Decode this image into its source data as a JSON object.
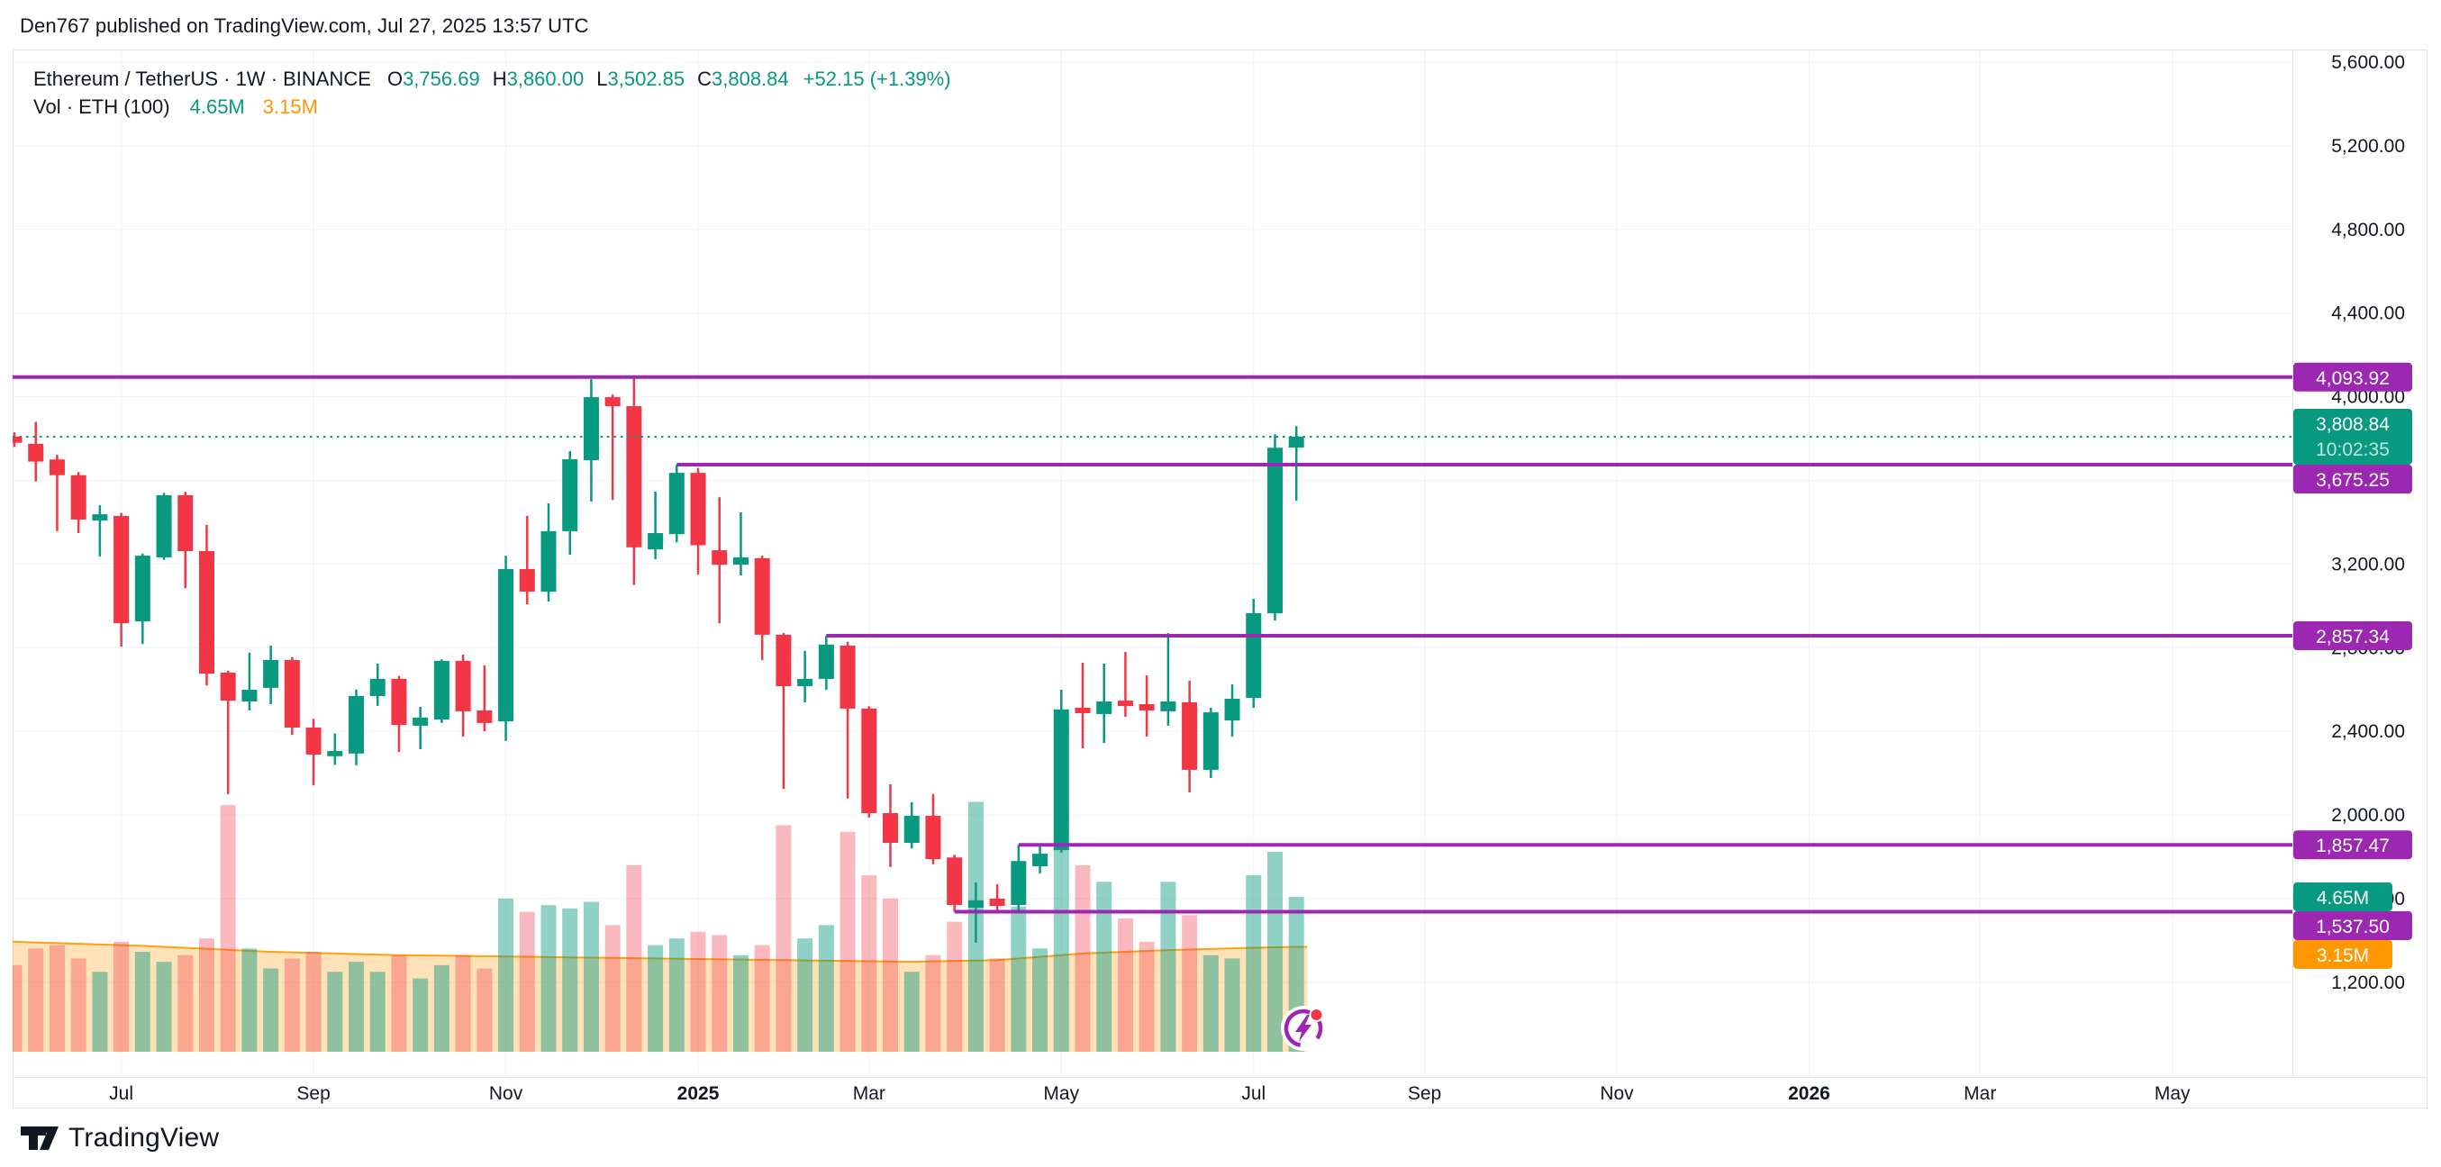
{
  "header": {
    "title": "Den767 published on TradingView.com, Jul 27, 2025 13:57 UTC"
  },
  "legend": {
    "symbol_line": "Ethereum / TetherUS · 1W · BINANCE",
    "ohlc": [
      {
        "label": "O",
        "value": "3,756.69"
      },
      {
        "label": "H",
        "value": "3,860.00"
      },
      {
        "label": "L",
        "value": "3,502.85"
      },
      {
        "label": "C",
        "value": "3,808.84"
      }
    ],
    "change": "+52.15 (+1.39%)",
    "volume_line": {
      "label": "Vol · ETH (100)",
      "value": "4.65M",
      "ma_value": "3.15M"
    }
  },
  "current": {
    "price_label": "3,808.84",
    "price": 3808.84,
    "countdown": "10:02:35"
  },
  "volume_badges": {
    "current": "4.65M",
    "current_value": 4.65,
    "ma": "3.15M",
    "ma_value": 3.15
  },
  "logo": {
    "text": "TradingView"
  },
  "icon": {
    "name": "lightning-idea-icon"
  },
  "colors": {
    "up": "#089981",
    "down": "#f23645",
    "purple": "#9c27b0",
    "orange": "#ff9800",
    "text": "#131722",
    "grid": "#f0f3fa",
    "frame": "#e0e3eb",
    "vol_up": "rgba(8,153,129,0.45)",
    "vol_down": "rgba(242,54,69,0.35)",
    "ma_fill": "rgba(255,152,0,0.28)",
    "ma_line": "rgba(255,152,0,0.9)",
    "countdown_text": "rgba(255,255,255,0.75)"
  },
  "chart_data": {
    "type": "candlestick",
    "title": "Ethereum / TetherUS weekly chart with volume",
    "symbol": "Ethereum / TetherUS",
    "interval": "1W",
    "exchange": "BINANCE",
    "ylabel": "Price (USDT)",
    "ylim": [
      860,
      5770
    ],
    "grid": true,
    "price_axis_ticks": [
      {
        "label": "5,600.00",
        "value": 5600
      },
      {
        "label": "5,200.00",
        "value": 5200
      },
      {
        "label": "4,800.00",
        "value": 4800
      },
      {
        "label": "4,400.00",
        "value": 4400
      },
      {
        "label": "4,000.00",
        "value": 4000
      },
      {
        "label": "3,600.00",
        "value": 3600
      },
      {
        "label": "3,200.00",
        "value": 3200
      },
      {
        "label": "2,800.00",
        "value": 2800
      },
      {
        "label": "2,400.00",
        "value": 2400
      },
      {
        "label": "2,000.00",
        "value": 2000
      },
      {
        "label": "1,600.00",
        "value": 1600
      },
      {
        "label": "1,200.00",
        "value": 1200
      }
    ],
    "time_axis_labels": [
      {
        "label": "Jul",
        "index": 5,
        "bold": false
      },
      {
        "label": "Sep",
        "index": 14,
        "bold": false
      },
      {
        "label": "Nov",
        "index": 23,
        "bold": false
      },
      {
        "label": "2025",
        "index": 32,
        "bold": true
      },
      {
        "label": "Mar",
        "index": 40,
        "bold": false
      },
      {
        "label": "May",
        "index": 49,
        "bold": false
      },
      {
        "label": "Jul",
        "index": 58,
        "bold": false
      },
      {
        "label": "Sep",
        "index": 66,
        "bold": false
      },
      {
        "label": "Nov",
        "index": 75,
        "bold": false
      },
      {
        "label": "2026",
        "index": 84,
        "bold": true
      },
      {
        "label": "Mar",
        "index": 92,
        "bold": false
      },
      {
        "label": "May",
        "index": 101,
        "bold": false
      }
    ],
    "price_lines": [
      {
        "label": "4,093.92",
        "value": 4093.92,
        "start_index": null
      },
      {
        "label": "3,675.25",
        "value": 3675.25,
        "start_index": 31
      },
      {
        "label": "2,857.34",
        "value": 2857.34,
        "start_index": 38
      },
      {
        "label": "1,857.47",
        "value": 1857.47,
        "start_index": 47
      },
      {
        "label": "1,537.50",
        "value": 1537.5,
        "start_index": 44
      }
    ],
    "last_bar": {
      "open": 3756.69,
      "high": 3860.0,
      "low": 3502.85,
      "close": 3808.84,
      "change": "+52.15",
      "change_pct": "+1.39%",
      "volume_m": 4.65
    },
    "volume_ma_window": 100,
    "volume_ma_points": [
      [
        0,
        3.3
      ],
      [
        6,
        3.18
      ],
      [
        12,
        3.0
      ],
      [
        18,
        2.9
      ],
      [
        24,
        2.85
      ],
      [
        30,
        2.8
      ],
      [
        36,
        2.75
      ],
      [
        42,
        2.7
      ],
      [
        46,
        2.75
      ],
      [
        50,
        2.95
      ],
      [
        54,
        3.05
      ],
      [
        58,
        3.12
      ],
      [
        60,
        3.15
      ]
    ],
    "candles_format": [
      "open",
      "high",
      "low",
      "close",
      "volume_m"
    ],
    "candles": [
      [
        3810,
        3830,
        3760,
        3780,
        2.6
      ],
      [
        3775,
        3880,
        3595,
        3690,
        3.1
      ],
      [
        3700,
        3722,
        3357,
        3625,
        3.2
      ],
      [
        3625,
        3640,
        3348,
        3413,
        2.8
      ],
      [
        3408,
        3481,
        3236,
        3438,
        2.4
      ],
      [
        3430,
        3445,
        2805,
        2917,
        3.3
      ],
      [
        2926,
        3250,
        2818,
        3240,
        3.0
      ],
      [
        3232,
        3540,
        3220,
        3529,
        2.7
      ],
      [
        3529,
        3545,
        3085,
        3262,
        2.9
      ],
      [
        3262,
        3387,
        2620,
        2676,
        3.4
      ],
      [
        2681,
        2690,
        2100,
        2547,
        7.4
      ],
      [
        2543,
        2776,
        2500,
        2599,
        3.1
      ],
      [
        2608,
        2810,
        2530,
        2741,
        2.5
      ],
      [
        2741,
        2755,
        2383,
        2418,
        2.8
      ],
      [
        2418,
        2460,
        2142,
        2289,
        3.0
      ],
      [
        2281,
        2390,
        2240,
        2306,
        2.4
      ],
      [
        2294,
        2600,
        2238,
        2569,
        2.7
      ],
      [
        2569,
        2724,
        2522,
        2651,
        2.4
      ],
      [
        2651,
        2665,
        2302,
        2431,
        2.9
      ],
      [
        2427,
        2517,
        2315,
        2466,
        2.2
      ],
      [
        2457,
        2745,
        2440,
        2737,
        2.6
      ],
      [
        2737,
        2767,
        2375,
        2496,
        2.9
      ],
      [
        2500,
        2715,
        2401,
        2440,
        2.5
      ],
      [
        2448,
        3240,
        2354,
        3176,
        4.6
      ],
      [
        3176,
        3430,
        3008,
        3068,
        4.2
      ],
      [
        3068,
        3490,
        3021,
        3357,
        4.4
      ],
      [
        3357,
        3740,
        3245,
        3701,
        4.3
      ],
      [
        3697,
        4084,
        3499,
        3998,
        4.5
      ],
      [
        3998,
        4010,
        3507,
        3955,
        3.8
      ],
      [
        3955,
        4090,
        3100,
        3280,
        5.6
      ],
      [
        3270,
        3546,
        3223,
        3348,
        3.2
      ],
      [
        3343,
        3675,
        3304,
        3636,
        3.4
      ],
      [
        3636,
        3660,
        3150,
        3290,
        3.6
      ],
      [
        3266,
        3520,
        2917,
        3197,
        3.5
      ],
      [
        3197,
        3447,
        3146,
        3232,
        2.9
      ],
      [
        3228,
        3240,
        2741,
        2862,
        3.2
      ],
      [
        2862,
        2870,
        2125,
        2616,
        6.8
      ],
      [
        2616,
        2785,
        2539,
        2651,
        3.4
      ],
      [
        2651,
        2857,
        2599,
        2815,
        3.8
      ],
      [
        2810,
        2828,
        2079,
        2509,
        6.6
      ],
      [
        2509,
        2520,
        1988,
        2009,
        5.3
      ],
      [
        2009,
        2147,
        1751,
        1867,
        4.6
      ],
      [
        1867,
        2061,
        1840,
        1996,
        2.4
      ],
      [
        1996,
        2100,
        1764,
        1789,
        2.9
      ],
      [
        1797,
        1810,
        1537.5,
        1570,
        3.9
      ],
      [
        1557,
        1678,
        1389,
        1592,
        7.5
      ],
      [
        1600,
        1669,
        1545,
        1565,
        2.8
      ],
      [
        1570,
        1857.47,
        1539,
        1780,
        4.35
      ],
      [
        1755,
        1862,
        1720,
        1815,
        3.1
      ],
      [
        1832,
        2599,
        1820,
        2505,
        6.1
      ],
      [
        2513,
        2728,
        2319,
        2487,
        5.6
      ],
      [
        2483,
        2724,
        2345,
        2543,
        5.1
      ],
      [
        2547,
        2780,
        2470,
        2521,
        4.0
      ],
      [
        2530,
        2668,
        2375,
        2500,
        3.3
      ],
      [
        2496,
        2870,
        2427,
        2543,
        5.1
      ],
      [
        2539,
        2642,
        2108,
        2216,
        4.1
      ],
      [
        2216,
        2513,
        2177,
        2491,
        2.9
      ],
      [
        2452,
        2625,
        2375,
        2556,
        2.8
      ],
      [
        2560,
        3034,
        2513,
        2965,
        5.3
      ],
      [
        2965,
        3820,
        2930,
        3756,
        6.0
      ],
      [
        3756.69,
        3860,
        3502.85,
        3808.84,
        4.65
      ]
    ]
  }
}
